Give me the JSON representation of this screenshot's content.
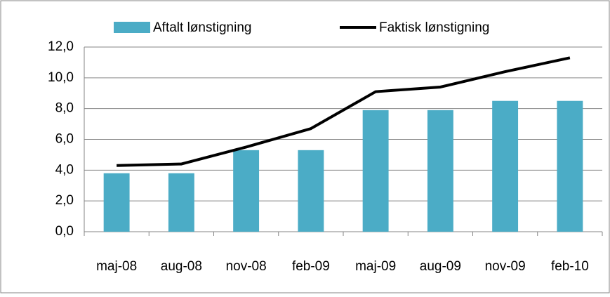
{
  "chart_data": {
    "type": "bar-line",
    "categories": [
      "maj-08",
      "aug-08",
      "nov-08",
      "feb-09",
      "maj-09",
      "aug-09",
      "nov-09",
      "feb-10"
    ],
    "series": [
      {
        "name": "Aftalt lønstigning",
        "type": "bar",
        "color": "#4bacc6",
        "values": [
          3.8,
          3.8,
          5.3,
          5.3,
          7.9,
          7.9,
          8.5,
          8.5
        ]
      },
      {
        "name": "Faktisk lønstigning",
        "type": "line",
        "color": "#000000",
        "values": [
          4.3,
          4.4,
          5.5,
          6.7,
          9.1,
          9.4,
          10.4,
          11.3
        ]
      }
    ],
    "ylim": [
      0,
      12
    ],
    "yticks": [
      {
        "value": 0,
        "label": "0,0"
      },
      {
        "value": 2,
        "label": "2,0"
      },
      {
        "value": 4,
        "label": "4,0"
      },
      {
        "value": 6,
        "label": "6,0"
      },
      {
        "value": 8,
        "label": "8,0"
      },
      {
        "value": 10,
        "label": "10,0"
      },
      {
        "value": 12,
        "label": "12,0"
      }
    ],
    "grid": true,
    "legend": "top"
  }
}
